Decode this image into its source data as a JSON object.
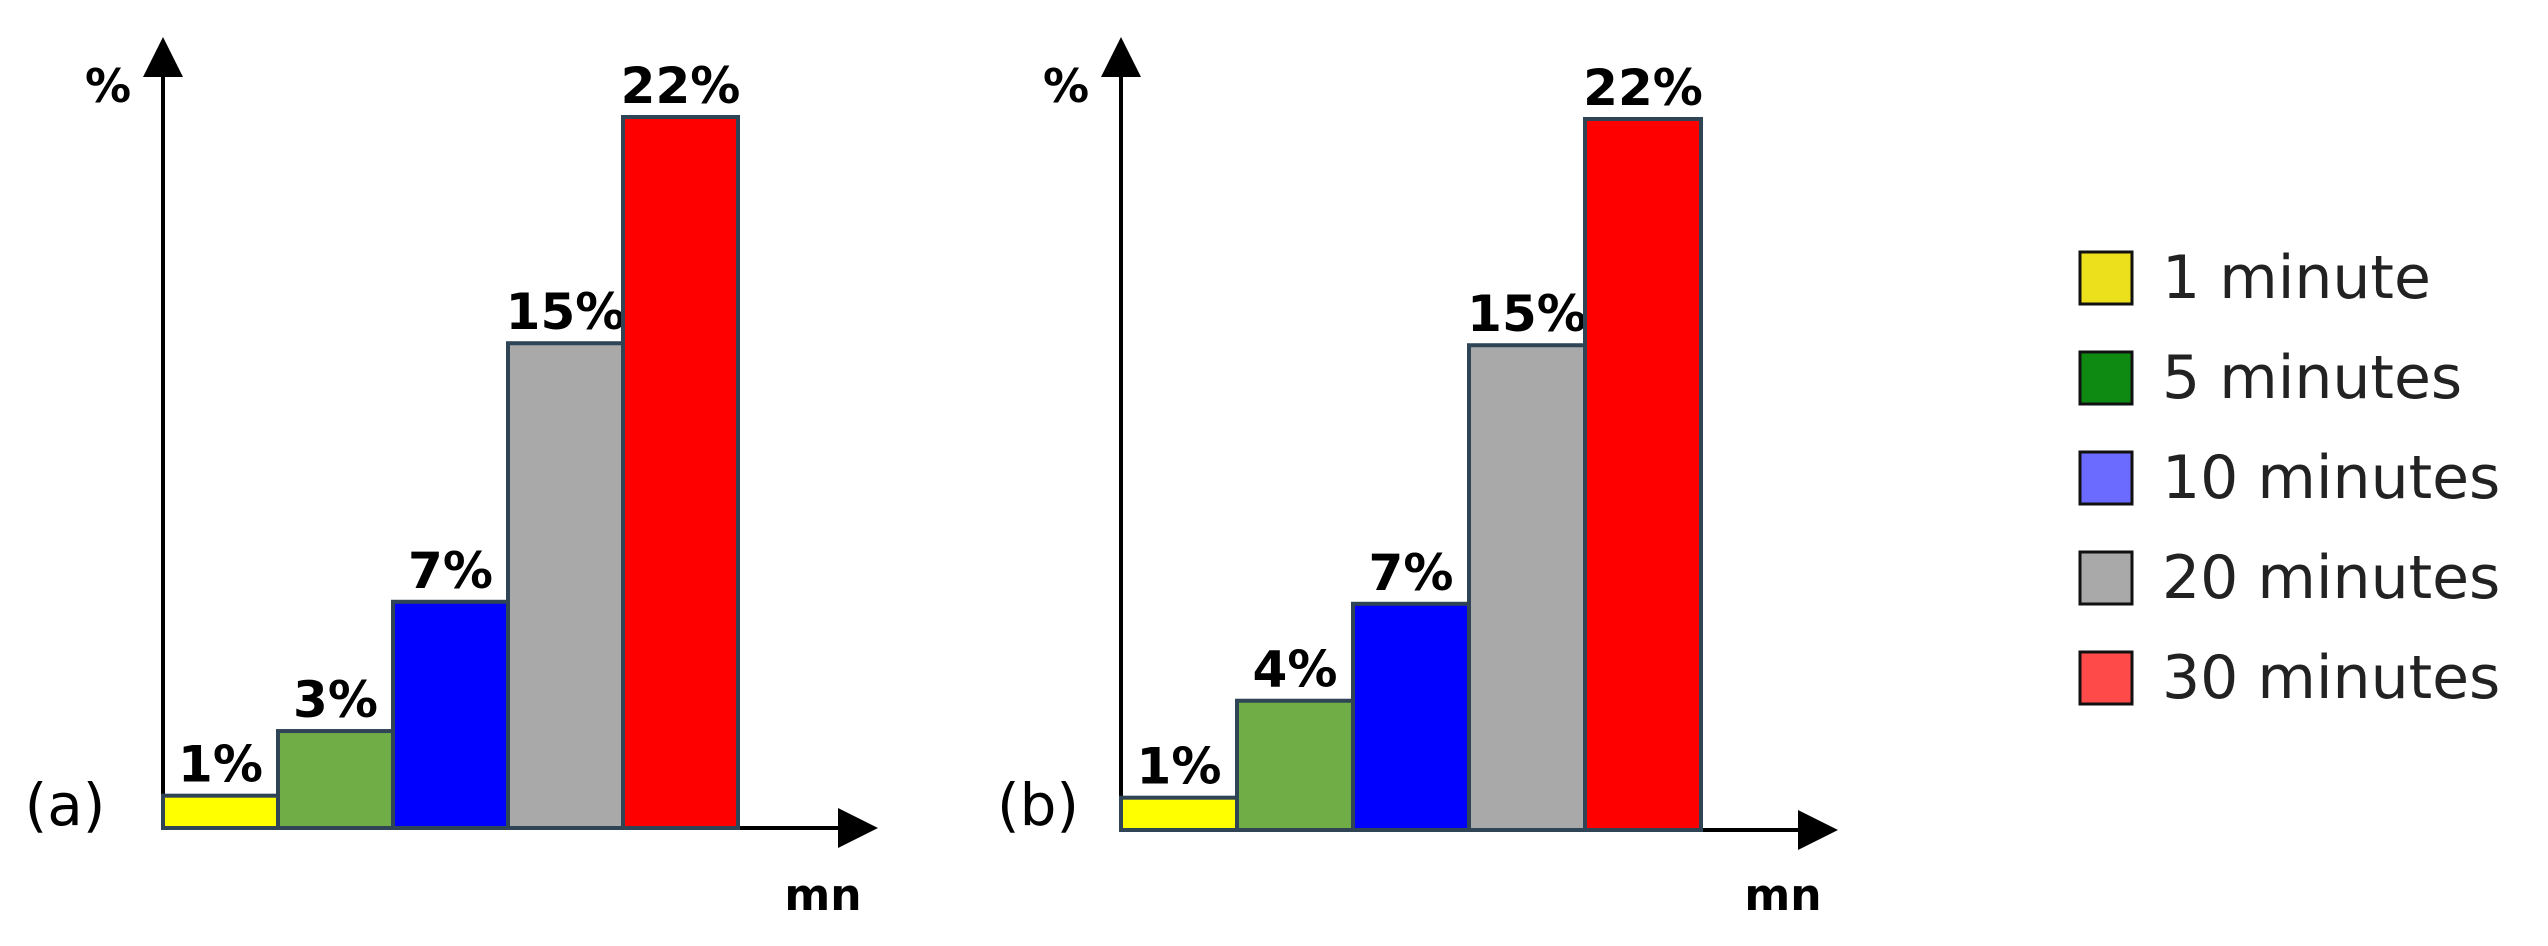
{
  "legend": {
    "items": [
      {
        "label": "1 minute",
        "color": "#ECDF1C"
      },
      {
        "label": "5 minutes",
        "color": "#0E8A12"
      },
      {
        "label": "10 minutes",
        "color": "#6B6BFF"
      },
      {
        "label": "20 minutes",
        "color": "#A9A9A9"
      },
      {
        "label": "30 minutes",
        "color": "#FF4A4A"
      }
    ]
  },
  "chart_data": [
    {
      "type": "bar",
      "panel_label": "(a)",
      "ylabel": "%",
      "xlabel": "mn",
      "categories": [
        "1 minute",
        "5 minutes",
        "10 minutes",
        "20 minutes",
        "30 minutes"
      ],
      "values": [
        1,
        3,
        7,
        15,
        22
      ],
      "value_labels": [
        "1%",
        "3%",
        "7%",
        "15%",
        "22%"
      ],
      "bar_colors": [
        "#FFFF00",
        "#70AD47",
        "#0000FF",
        "#A9A9A9",
        "#FF0000"
      ],
      "ylim": [
        0,
        22
      ],
      "grid": false
    },
    {
      "type": "bar",
      "panel_label": "(b)",
      "ylabel": "%",
      "xlabel": "mn",
      "categories": [
        "1 minute",
        "5 minutes",
        "10 minutes",
        "20 minutes",
        "30 minutes"
      ],
      "values": [
        1,
        4,
        7,
        15,
        22
      ],
      "value_labels": [
        "1%",
        "4%",
        "7%",
        "15%",
        "22%"
      ],
      "bar_colors": [
        "#FFFF00",
        "#70AD47",
        "#0000FF",
        "#A9A9A9",
        "#FF0000"
      ],
      "ylim": [
        0,
        22
      ],
      "grid": false
    }
  ]
}
